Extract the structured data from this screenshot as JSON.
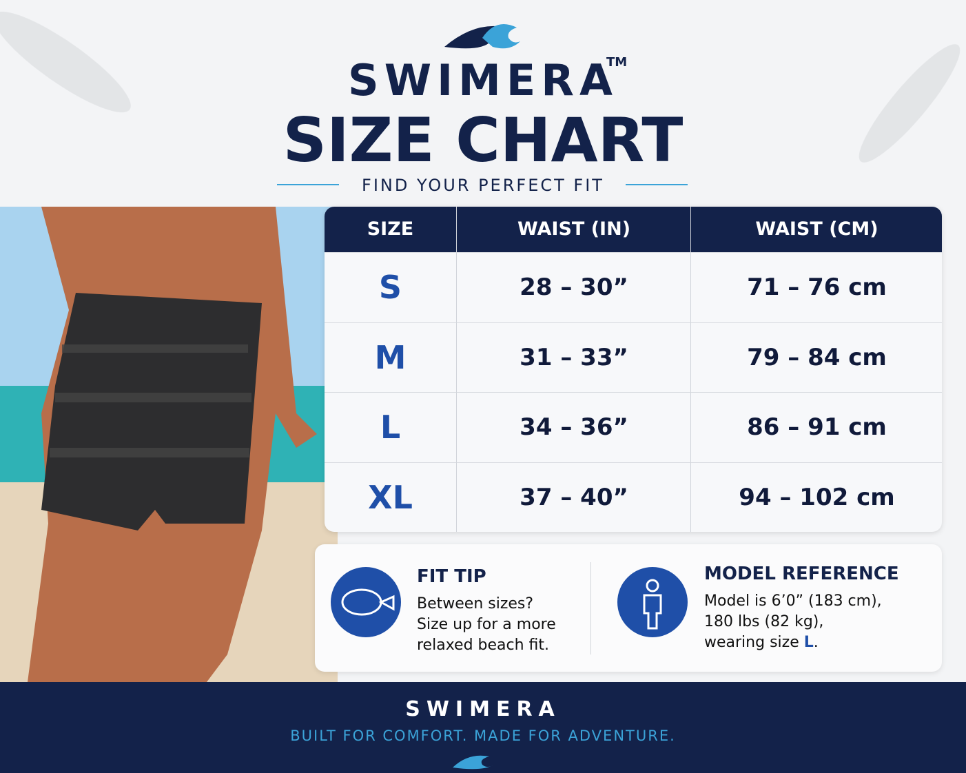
{
  "header": {
    "brand": "SWIMERA",
    "trademark": "TM",
    "title": "SIZE CHART",
    "subtitle": "FIND YOUR PERFECT FIT"
  },
  "table": {
    "columns": [
      "SIZE",
      "WAIST (IN)",
      "WAIST (CM)"
    ],
    "rows": [
      [
        "S",
        "28 – 30”",
        "71 – 76 cm"
      ],
      [
        "M",
        "31 – 33”",
        "79 – 84 cm"
      ],
      [
        "L",
        "34 – 36”",
        "86 – 91 cm"
      ],
      [
        "XL",
        "37 – 40”",
        "94 – 102 cm"
      ]
    ]
  },
  "fit_tip": {
    "title": "FIT TIP",
    "lines": [
      "Between sizes?",
      "Size up for a more",
      "relaxed beach fit."
    ]
  },
  "model_reference": {
    "title": "MODEL REFERENCE",
    "lines": [
      "Model is 6’0” (183 cm),",
      "180 lbs (82 kg),",
      "wearing size"
    ],
    "size": "L",
    "end": "."
  },
  "footer": {
    "brand": "SWIMERA",
    "tagline": "BUILT FOR COMFORT. MADE FOR ADVENTURE."
  }
}
